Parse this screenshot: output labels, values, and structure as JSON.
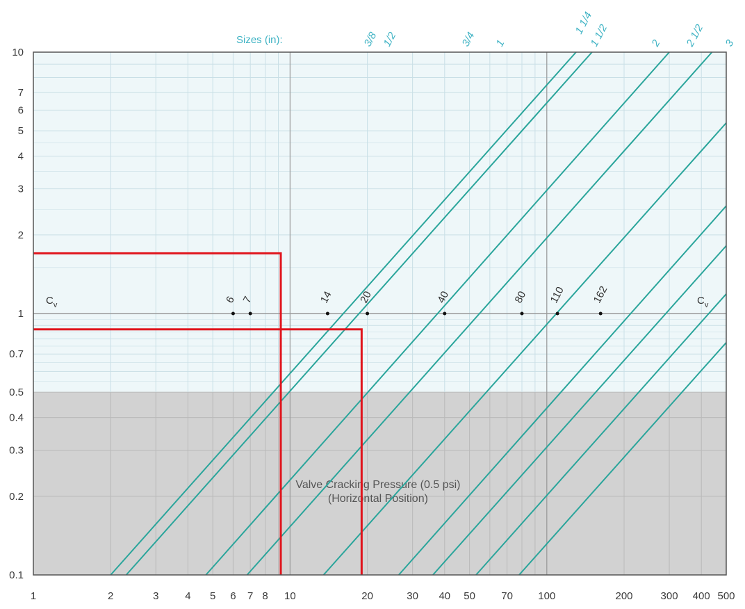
{
  "chart_data": {
    "type": "line",
    "xscale": "log",
    "yscale": "log",
    "xlim": [
      1,
      500
    ],
    "ylim": [
      0.1,
      10
    ],
    "grid": true,
    "x_ticks": [
      "1",
      "2",
      "3",
      "4",
      "5",
      "6",
      "7",
      "8",
      "10",
      "20",
      "30",
      "40",
      "50",
      "70",
      "100",
      "200",
      "300",
      "400",
      "500"
    ],
    "x_tick_values": [
      1,
      2,
      3,
      4,
      5,
      6,
      7,
      8,
      10,
      20,
      30,
      40,
      50,
      70,
      100,
      200,
      300,
      400,
      500
    ],
    "y_ticks": [
      "0.1",
      "0.2",
      "0.3",
      "0.4",
      "0.5",
      "0.7",
      "1",
      "2",
      "3",
      "4",
      "5",
      "6",
      "7",
      "10"
    ],
    "y_tick_values": [
      0.1,
      0.2,
      0.3,
      0.4,
      0.5,
      0.7,
      1,
      2,
      3,
      4,
      5,
      6,
      7,
      10
    ],
    "sizes_title": "Sizes (in):",
    "cv_label_left": "C",
    "cv_label_right": "C",
    "cv_subscript": "v",
    "shaded_region": {
      "y_from": 0.1,
      "y_to": 0.5,
      "note_line1": "Valve Cracking Pressure (0.5 psi)",
      "note_line2": "(Horizontal Position)"
    },
    "series": [
      {
        "name": "3/8",
        "cv": "6",
        "points": [
          [
            2,
            0.1
          ],
          [
            130,
            10
          ]
        ]
      },
      {
        "name": "1/2",
        "cv": "7",
        "points": [
          [
            2.3,
            0.1
          ],
          [
            150,
            10
          ]
        ]
      },
      {
        "name": "3/4",
        "cv": "14",
        "points": [
          [
            4.7,
            0.1
          ],
          [
            300,
            10
          ]
        ]
      },
      {
        "name": "1",
        "cv": "20",
        "points": [
          [
            6.8,
            0.1
          ],
          [
            440,
            10
          ]
        ]
      },
      {
        "name": "1 1/4",
        "cv": "40",
        "points": [
          [
            13.5,
            0.1
          ],
          [
            880,
            10
          ]
        ]
      },
      {
        "name": "1 1/2",
        "cv": "80",
        "points": [
          [
            26.5,
            0.1
          ],
          [
            1700,
            10
          ]
        ]
      },
      {
        "name": "2",
        "cv": "110",
        "points": [
          [
            36,
            0.1
          ],
          [
            2350,
            10
          ]
        ]
      },
      {
        "name": "2 1/2",
        "cv": "162",
        "points": [
          [
            53,
            0.1
          ],
          [
            3450,
            10
          ]
        ]
      },
      {
        "name": "3",
        "cv": "",
        "points": [
          [
            78,
            0.1
          ],
          [
            5100,
            10
          ]
        ]
      }
    ],
    "cv_points": [
      {
        "label": "6",
        "x": 6
      },
      {
        "label": "7",
        "x": 7
      },
      {
        "label": "14",
        "x": 14
      },
      {
        "label": "20",
        "x": 20
      },
      {
        "label": "40",
        "x": 40
      },
      {
        "label": "80",
        "x": 80
      },
      {
        "label": "110",
        "x": 110
      },
      {
        "label": "162",
        "x": 162
      }
    ],
    "annotations": [
      {
        "type": "red-guide",
        "x": 9.2,
        "y": 1.7
      },
      {
        "type": "red-guide",
        "x": 19,
        "y": 0.87
      }
    ],
    "colors": {
      "line": "#2aa59b",
      "size_label": "#3fb3c4",
      "guide": "#e0141c",
      "upper_bg": "#eef7f9",
      "lower_bg": "#d2d2d2",
      "grid_upper": "#c9dfe6",
      "grid_lower": "#b9b9b9"
    }
  }
}
